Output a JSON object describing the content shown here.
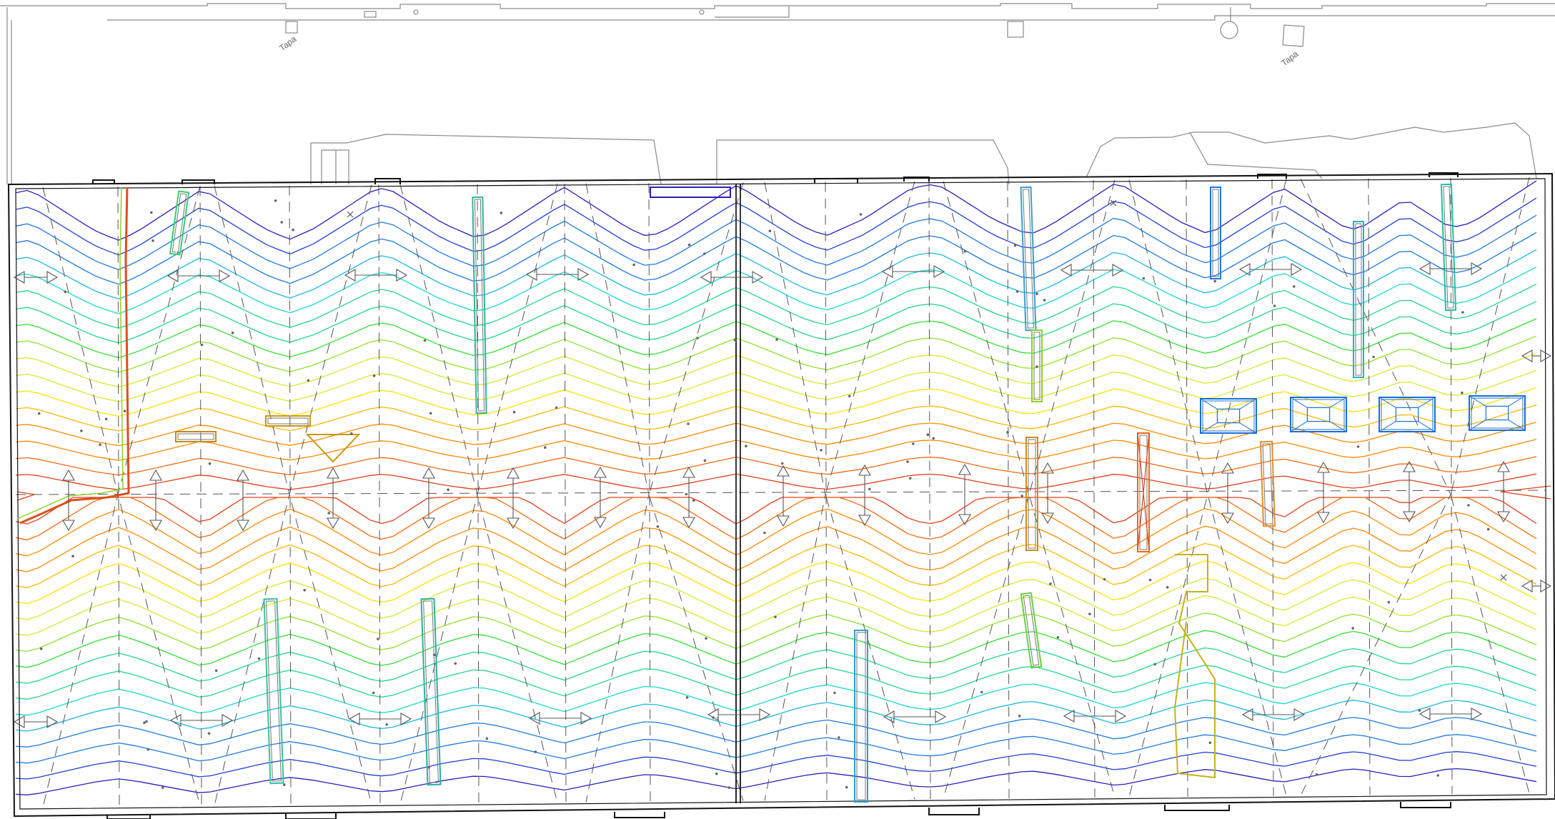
{
  "drawing": {
    "labels": [
      "Tapa",
      "Tapa"
    ]
  },
  "contour_palette": [
    "#2a1fb8",
    "#1f3fd0",
    "#1f7ae0",
    "#19b7e0",
    "#18d8cf",
    "#22d88a",
    "#33e033",
    "#8fe22a",
    "#d8e82a",
    "#ffe000",
    "#ffb800",
    "#ff8a00",
    "#f26a10",
    "#e0401a"
  ],
  "colors": {
    "outline": "#111111",
    "context_lines": "#8a8a8a",
    "gridlines": "#555555",
    "drain_outlets": "#1a6fd6"
  },
  "icons": [
    "arrow-icon",
    "drain-outlet-icon",
    "spot-marker-icon"
  ]
}
